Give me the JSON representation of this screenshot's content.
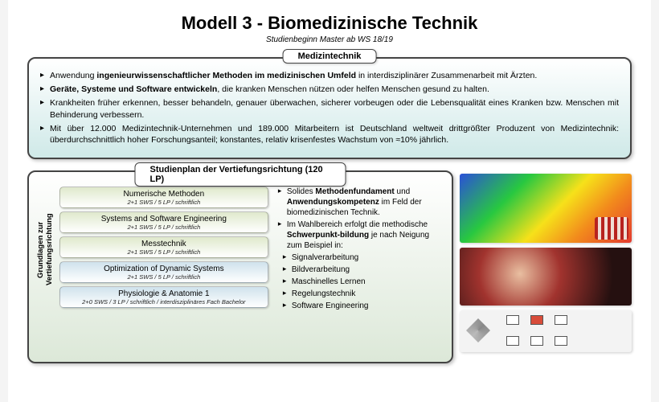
{
  "header": {
    "title": "Modell 3 - Biomedizinische Technik",
    "subtitle": "Studienbeginn Master ab WS 18/19"
  },
  "medtech": {
    "label": "Medizintechnik",
    "bullets": [
      {
        "pre": "Anwendung ",
        "b": "ingenieurwissenschaftlicher Methoden im medizinischen Umfeld",
        "post": " in interdisziplinärer Zusammenarbeit mit Ärzten."
      },
      {
        "pre": "",
        "b": "Geräte, Systeme und Software entwickeln",
        "post": ", die kranken Menschen nützen oder helfen Menschen gesund zu halten."
      },
      {
        "pre": "Krankheiten früher erkennen, besser behandeln, genauer überwachen, sicherer vorbeugen oder die Lebensqualität eines Kranken bzw. Menschen mit Behinderung verbessern.",
        "b": "",
        "post": ""
      },
      {
        "pre": "Mit über 12.000 Medizintechnik-Unternehmen und 189.000 Mitarbeitern ist Deutschland weltweit drittgrößter Produzent von Medizintechnik: überdurchschnittlich hoher Forschungsanteil; konstantes, relativ krisenfestes Wachstum von ≈10% jährlich.",
        "b": "",
        "post": ""
      }
    ]
  },
  "studienplan": {
    "label": "Studienplan der Vertiefungsrichtung (120 LP)",
    "vlabel_l1": "Grundlagen zur",
    "vlabel_l2": "Vertiefungsrichtung",
    "courses": [
      {
        "title": "Numerische Methoden",
        "meta": "2+1 SWS / 5 LP / schriftlich",
        "bg": "#dfe9cc"
      },
      {
        "title": "Systems and Software Engineering",
        "meta": "2+1 SWS / 5 LP / schriftlich",
        "bg": "#dfe9cc"
      },
      {
        "title": "Messtechnik",
        "meta": "2+1 SWS / 5 LP / schriftlich",
        "bg": "#dfe9cc"
      },
      {
        "title": "Optimization of Dynamic Systems",
        "meta": "2+1 SWS / 5 LP / schriftlich",
        "bg": "#cfe2ec"
      },
      {
        "title": "Physiologie & Anatomie 1",
        "meta": "2+0 SWS / 3 LP / schriftlich / interdisziplinäres Fach Bachelor",
        "bg": "#cfe2ec"
      }
    ],
    "right": {
      "p1_pre": "Solides ",
      "p1_b1": "Methodenfundament",
      "p1_mid": " und ",
      "p1_b2": "Anwendungskompetenz",
      "p1_post": " im Feld der biomedizinischen Technik.",
      "p2_pre": "Im Wahlbereich erfolgt die methodische ",
      "p2_b": "Schwerpunkt-bildung",
      "p2_post": " je nach Neigung zum Beispiel in:",
      "subs": [
        "Signalverarbeitung",
        "Bildverarbeitung",
        "Maschinelles Lernen",
        "Regelungstechnik",
        "Software Engineering"
      ]
    }
  },
  "colors": {
    "border": "#444444",
    "green_grad_end": "#dce8d8",
    "teal_grad_end": "#cfe9e8"
  }
}
